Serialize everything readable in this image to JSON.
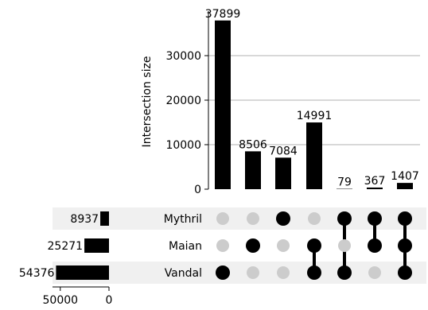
{
  "chart_data": {
    "type": "upset",
    "title": "",
    "sets": [
      {
        "name": "Mythril",
        "size": 8937
      },
      {
        "name": "Maian",
        "size": 25271
      },
      {
        "name": "Vandal",
        "size": 54376
      }
    ],
    "intersections": [
      {
        "members": [
          "Vandal"
        ],
        "size": 37899
      },
      {
        "members": [
          "Maian"
        ],
        "size": 8506
      },
      {
        "members": [
          "Mythril"
        ],
        "size": 7084
      },
      {
        "members": [
          "Maian",
          "Vandal"
        ],
        "size": 14991
      },
      {
        "members": [
          "Mythril",
          "Vandal"
        ],
        "size": 79
      },
      {
        "members": [
          "Mythril",
          "Maian"
        ],
        "size": 367
      },
      {
        "members": [
          "Mythril",
          "Maian",
          "Vandal"
        ],
        "size": 1407
      }
    ],
    "intersection_axis": {
      "label": "Intersection size",
      "ylim": [
        0,
        40000
      ],
      "ticks": [
        0,
        10000,
        20000,
        30000
      ],
      "grid": true
    },
    "set_size_axis": {
      "label": "",
      "xlim": [
        0,
        58000
      ],
      "ticks": [
        50000,
        0
      ],
      "reversed": true
    },
    "colors": {
      "bar": "#000000",
      "dot_active": "#000000",
      "dot_inactive": "#cccccc",
      "row_shade": "#f0f0f0",
      "grid": "#b0b0b0"
    }
  }
}
